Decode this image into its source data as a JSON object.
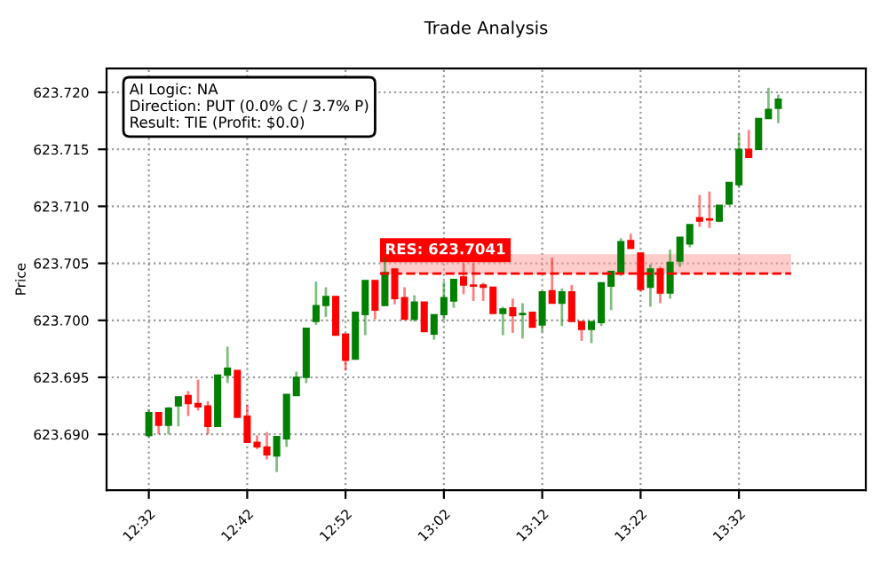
{
  "chart_data": {
    "type": "candlestick",
    "title": "Trade Analysis",
    "ylabel": "Price",
    "categories": [
      "12:32",
      null,
      null,
      null,
      null,
      null,
      null,
      null,
      null,
      null,
      "12:42",
      null,
      null,
      null,
      null,
      null,
      null,
      null,
      null,
      null,
      "12:52",
      null,
      null,
      null,
      null,
      null,
      null,
      null,
      null,
      null,
      "13:02",
      null,
      null,
      null,
      null,
      null,
      null,
      null,
      null,
      null,
      "13:12",
      null,
      null,
      null,
      null,
      null,
      null,
      null,
      null,
      null,
      "13:22",
      null,
      null,
      null,
      null,
      null,
      null,
      null,
      null,
      null,
      "13:32",
      null,
      null,
      null,
      null
    ],
    "ohlc": [
      [
        623.6899,
        623.6922,
        623.6897,
        623.6919
      ],
      [
        623.6919,
        623.6919,
        623.69,
        623.6908
      ],
      [
        623.6908,
        623.6924,
        623.69,
        623.6923
      ],
      [
        623.6925,
        623.6933,
        623.6907,
        623.6933
      ],
      [
        623.6934,
        623.6938,
        623.6916,
        623.6927
      ],
      [
        623.6927,
        623.6948,
        623.6921,
        623.6924
      ],
      [
        623.6925,
        623.6929,
        623.69,
        623.6907
      ],
      [
        623.6907,
        623.6952,
        623.6907,
        623.6952
      ],
      [
        623.6952,
        623.6977,
        623.6945,
        623.6958
      ],
      [
        623.6956,
        623.6956,
        623.6915,
        623.6915
      ],
      [
        623.6916,
        623.6926,
        623.6893,
        623.6893
      ],
      [
        623.6893,
        623.6899,
        623.6887,
        623.6889
      ],
      [
        623.6889,
        623.6902,
        623.6878,
        623.6882
      ],
      [
        623.6881,
        623.6898,
        623.6867,
        623.6898
      ],
      [
        623.6896,
        623.6935,
        623.6889,
        623.6935
      ],
      [
        623.6934,
        623.6955,
        623.6934,
        623.695
      ],
      [
        623.695,
        623.6993,
        623.6945,
        623.6993
      ],
      [
        623.6999,
        623.7034,
        623.6996,
        623.7013
      ],
      [
        623.7013,
        623.7029,
        623.7003,
        623.7021
      ],
      [
        623.7021,
        623.7021,
        623.6987,
        623.6987
      ],
      [
        623.6988,
        623.6988,
        623.6956,
        623.6965
      ],
      [
        623.6966,
        623.7007,
        623.6966,
        623.7007
      ],
      [
        623.7005,
        623.7035,
        623.6987,
        623.7035
      ],
      [
        623.7035,
        623.7035,
        623.7001,
        623.7009
      ],
      [
        623.7013,
        623.7055,
        623.7013,
        623.7042
      ],
      [
        623.7045,
        623.7045,
        623.7014,
        623.7019
      ],
      [
        623.702,
        623.7029,
        623.7001,
        623.7001
      ],
      [
        623.7001,
        623.7022,
        623.6999,
        623.7016
      ],
      [
        623.7016,
        623.7016,
        623.699,
        623.699
      ],
      [
        623.6988,
        623.7005,
        623.6983,
        623.7005
      ],
      [
        623.7005,
        623.7034,
        623.7,
        623.702
      ],
      [
        623.7017,
        623.7036,
        623.7011,
        623.7036
      ],
      [
        623.7038,
        623.705,
        623.7023,
        623.7031
      ],
      [
        623.7031,
        623.705,
        623.7017,
        623.703
      ],
      [
        623.7031,
        623.7033,
        623.7017,
        623.7029
      ],
      [
        623.7029,
        623.7029,
        623.7006,
        623.7006
      ],
      [
        623.7006,
        623.7012,
        623.6987,
        623.701
      ],
      [
        623.7011,
        623.7019,
        623.6989,
        623.7004
      ],
      [
        623.7005,
        623.7015,
        623.6984,
        623.7006
      ],
      [
        623.7007,
        623.7007,
        623.6994,
        623.6994
      ],
      [
        623.6996,
        623.7025,
        623.699,
        623.7025
      ],
      [
        623.7026,
        623.7055,
        623.7015,
        623.7015
      ],
      [
        623.7015,
        623.7028,
        623.6995,
        623.7025
      ],
      [
        623.7025,
        623.7031,
        623.6999,
        623.6999
      ],
      [
        623.6999,
        623.6999,
        623.6982,
        623.6992
      ],
      [
        623.6992,
        623.6999,
        623.698,
        623.6999
      ],
      [
        623.6998,
        623.7033,
        623.6995,
        623.7033
      ],
      [
        623.703,
        623.7043,
        623.7009,
        623.7043
      ],
      [
        623.7042,
        623.7072,
        623.7039,
        623.7069
      ],
      [
        623.707,
        623.7076,
        623.7063,
        623.7063
      ],
      [
        623.7059,
        623.7059,
        623.7025,
        623.7027
      ],
      [
        623.7029,
        623.7049,
        623.7012,
        623.7045
      ],
      [
        623.7045,
        623.7047,
        623.7015,
        623.7024
      ],
      [
        623.7024,
        623.7062,
        623.7019,
        623.7051
      ],
      [
        623.7052,
        623.7073,
        623.7047,
        623.7073
      ],
      [
        623.7067,
        623.7084,
        623.7064,
        623.7084
      ],
      [
        623.709,
        623.711,
        623.7082,
        623.7087
      ],
      [
        623.7089,
        623.7113,
        623.7081,
        623.7088
      ],
      [
        623.7087,
        623.7101,
        623.7086,
        623.7101
      ],
      [
        623.7102,
        623.7121,
        623.7101,
        623.7121
      ],
      [
        623.7119,
        623.7164,
        623.7116,
        623.715
      ],
      [
        623.715,
        623.7167,
        623.7143,
        623.7143
      ],
      [
        623.715,
        623.7177,
        623.715,
        623.7177
      ],
      [
        623.7177,
        623.7204,
        623.7177,
        623.7185
      ],
      [
        623.7186,
        623.7198,
        623.7173,
        623.7194
      ]
    ],
    "colors": [
      "#008000",
      "#ff0000",
      "#008000",
      "#008000",
      "#ff0000",
      "#ff0000",
      "#ff0000",
      "#008000",
      "#008000",
      "#ff0000",
      "#ff0000",
      "#ff0000",
      "#ff0000",
      "#008000",
      "#008000",
      "#008000",
      "#008000",
      "#008000",
      "#008000",
      "#ff0000",
      "#ff0000",
      "#008000",
      "#008000",
      "#ff0000",
      "#008000",
      "#ff0000",
      "#ff0000",
      "#008000",
      "#ff0000",
      "#008000",
      "#008000",
      "#008000",
      "#ff0000",
      "#ff0000",
      "#ff0000",
      "#ff0000",
      "#008000",
      "#ff0000",
      "#008000",
      "#ff0000",
      "#008000",
      "#ff0000",
      "#008000",
      "#ff0000",
      "#ff0000",
      "#008000",
      "#008000",
      "#008000",
      "#008000",
      "#ff0000",
      "#ff0000",
      "#008000",
      "#ff0000",
      "#008000",
      "#008000",
      "#008000",
      "#ff0000",
      "#ff0000",
      "#008000",
      "#008000",
      "#008000",
      "#ff0000",
      "#008000",
      "#008000",
      "#008000"
    ],
    "ylim": [
      623.6851,
      623.7221
    ],
    "yticks": [
      {
        "value": 623.69,
        "label": "623.690"
      },
      {
        "value": 623.695,
        "label": "623.695"
      },
      {
        "value": 623.7,
        "label": "623.700"
      },
      {
        "value": 623.705,
        "label": "623.705"
      },
      {
        "value": 623.71,
        "label": "623.710"
      },
      {
        "value": 623.715,
        "label": "623.715"
      },
      {
        "value": 623.72,
        "label": "623.720"
      }
    ],
    "ref_lines": [
      {
        "axis": "y",
        "value": 623.7041,
        "label": "RES: 623.7041",
        "color": "#ff0000",
        "line_style": "dashed"
      }
    ],
    "bands": [
      {
        "axis": "y",
        "from": 623.7041,
        "to": 623.7058,
        "color": "#ff9999"
      }
    ],
    "annotations": [
      "AI Logic: NA\nDirection: PUT (0.0% C / 3.7% P)\nResult: TIE (Profit: $0.0)"
    ],
    "grid": true
  }
}
